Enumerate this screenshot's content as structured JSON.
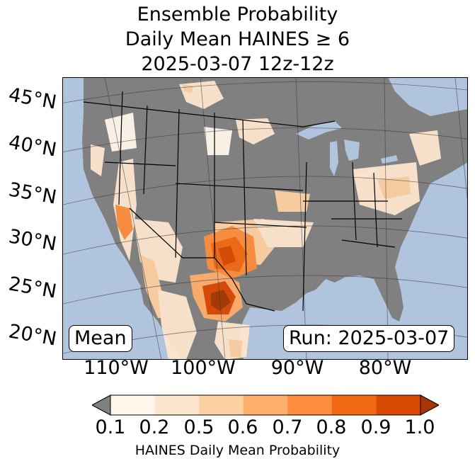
{
  "title": {
    "line1": "Ensemble Probability",
    "line2": "Daily Mean HAINES ≥ 6",
    "line3": "2025-03-07 12z-12z"
  },
  "map": {
    "lat_labels": [
      "45°N",
      "40°N",
      "35°N",
      "30°N",
      "25°N",
      "20°N"
    ],
    "lon_labels": [
      "110°W",
      "100°W",
      "90°W",
      "80°W"
    ],
    "colors": {
      "ocean": "#b0c4de",
      "land": "#808080",
      "border": "#000000"
    },
    "hotspots": [
      {
        "region": "west-texas-new-mexico",
        "level": 0.9
      },
      {
        "region": "southwest-texas-mexico",
        "level": 1.0
      },
      {
        "region": "arizona",
        "level": 0.7
      },
      {
        "region": "oklahoma",
        "level": 0.5
      },
      {
        "region": "mid-atlantic",
        "level": 0.5
      },
      {
        "region": "northern-plains",
        "level": 0.2
      }
    ]
  },
  "annotations": {
    "left": "Mean",
    "right": "Run: 2025-03-07"
  },
  "colorbar": {
    "ticks": [
      "0.1",
      "0.2",
      "0.5",
      "0.6",
      "0.7",
      "0.8",
      "0.9",
      "1.0"
    ],
    "colors": [
      "#fff5eb",
      "#fee6ce",
      "#fdd0a2",
      "#fdae6b",
      "#fd8d3c",
      "#f16913",
      "#d94801",
      "#a63603"
    ],
    "under_color": "#808080",
    "label": "HAINES Daily Mean Probability"
  }
}
